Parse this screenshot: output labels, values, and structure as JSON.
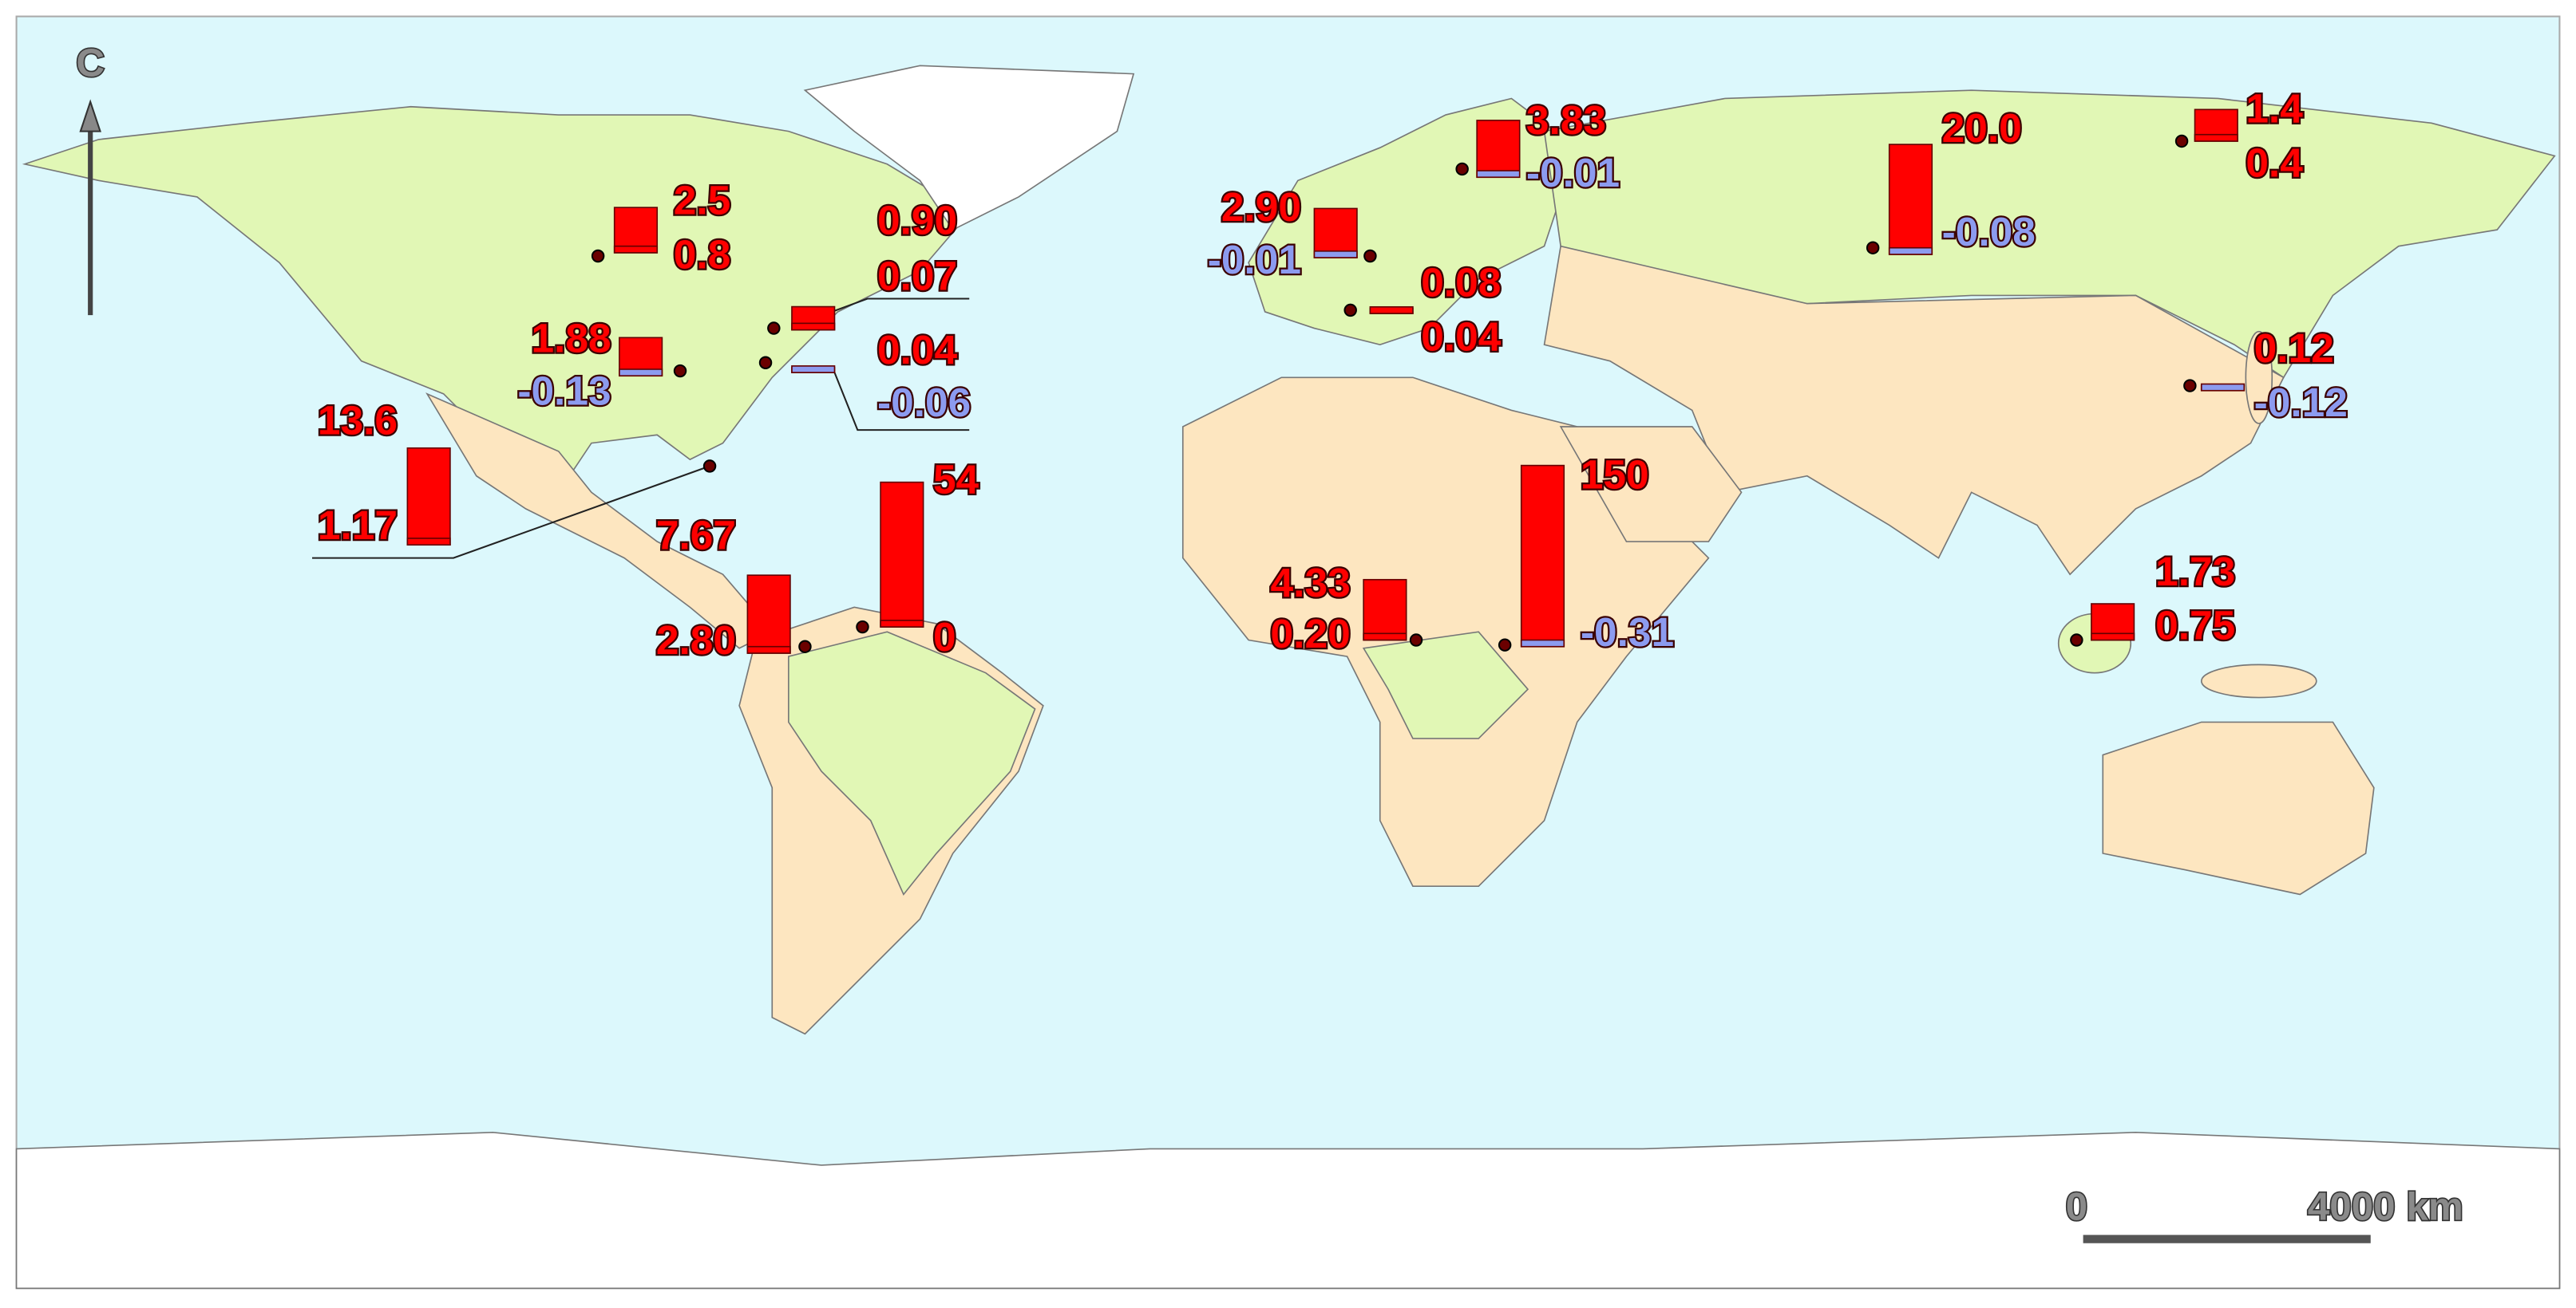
{
  "north_label": "C",
  "scale_bar": {
    "start_label": "0",
    "end_label": "4000 km"
  },
  "positive_color": "#ff0000",
  "negative_color": "#8c9bef",
  "sites": [
    {
      "values": [
        2.5,
        0.8
      ],
      "value_labels": [
        "2.5",
        "0.8"
      ]
    },
    {
      "values": [
        0.9,
        0.07
      ],
      "value_labels": [
        "0.90",
        "0.07"
      ]
    },
    {
      "values": [
        1.88,
        -0.13
      ],
      "value_labels": [
        "1.88",
        "-0.13"
      ]
    },
    {
      "values": [
        0.04,
        -0.06
      ],
      "value_labels": [
        "0.04",
        "-0.06"
      ]
    },
    {
      "values": [
        13.6,
        1.17
      ],
      "value_labels": [
        "13.6",
        "1.17"
      ]
    },
    {
      "values": [
        7.67,
        2.8
      ],
      "value_labels": [
        "7.67",
        "2.80"
      ]
    },
    {
      "values": [
        54,
        0
      ],
      "value_labels": [
        "54",
        "0"
      ]
    },
    {
      "values": [
        2.9,
        -0.01
      ],
      "value_labels": [
        "2.90",
        "-0.01"
      ]
    },
    {
      "values": [
        3.83,
        -0.01
      ],
      "value_labels": [
        "3.83",
        "-0.01"
      ]
    },
    {
      "values": [
        0.08,
        0.04
      ],
      "value_labels": [
        "0.08",
        "0.04"
      ]
    },
    {
      "values": [
        20.0,
        -0.08
      ],
      "value_labels": [
        "20.0",
        "-0.08"
      ]
    },
    {
      "values": [
        1.4,
        0.4
      ],
      "value_labels": [
        "1.4",
        "0.4"
      ]
    },
    {
      "values": [
        0.12,
        -0.12
      ],
      "value_labels": [
        "0.12",
        "-0.12"
      ]
    },
    {
      "values": [
        4.33,
        0.2
      ],
      "value_labels": [
        "4.33",
        "0.20"
      ]
    },
    {
      "values": [
        150,
        -0.31
      ],
      "value_labels": [
        "150",
        "-0.31"
      ]
    },
    {
      "values": [
        1.73,
        0.75
      ],
      "value_labels": [
        "1.73",
        "0.75"
      ]
    }
  ]
}
